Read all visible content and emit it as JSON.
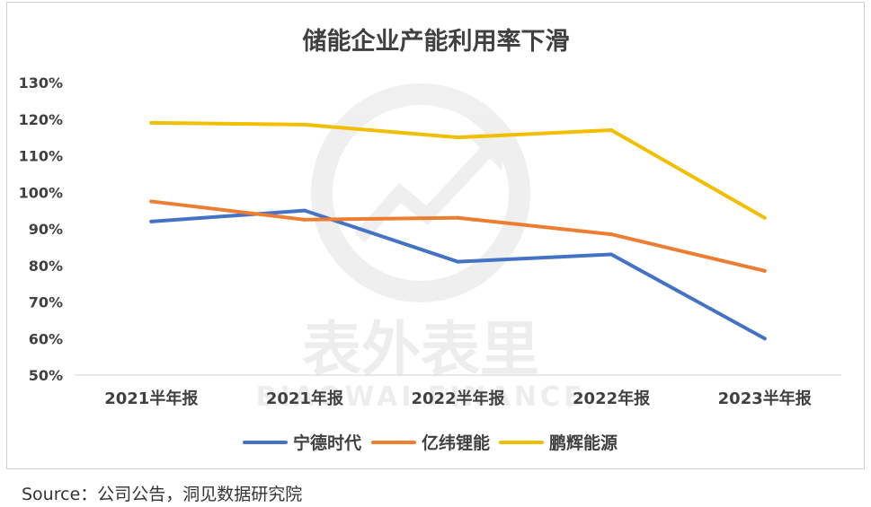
{
  "chart_data": {
    "type": "line",
    "title": "储能企业产能利用率下滑",
    "categories": [
      "2021半年报",
      "2021年报",
      "2022半年报",
      "2022年报",
      "2023半年报"
    ],
    "ylim": [
      50,
      130
    ],
    "yticks": [
      50,
      60,
      70,
      80,
      90,
      100,
      110,
      120,
      130
    ],
    "ytick_labels": [
      "50%",
      "60%",
      "70%",
      "80%",
      "90%",
      "100%",
      "110%",
      "120%",
      "130%"
    ],
    "xlabel": "",
    "ylabel": "",
    "grid": false,
    "legend_position": "bottom",
    "series": [
      {
        "name": "宁德时代",
        "color": "#4472C4",
        "values": [
          92,
          95,
          81,
          83,
          60
        ]
      },
      {
        "name": "亿纬锂能",
        "color": "#ED7D31",
        "values": [
          97.5,
          92.5,
          93,
          88.5,
          78.5
        ]
      },
      {
        "name": "鹏辉能源",
        "color": "#F2BE00",
        "values": [
          119,
          118.5,
          115,
          117,
          93
        ]
      }
    ]
  },
  "watermark": {
    "text_cn": "表外表里",
    "text_en": "BIAOWAI FINANCE"
  },
  "source_note": "Source：公司公告，洞见数据研究院"
}
